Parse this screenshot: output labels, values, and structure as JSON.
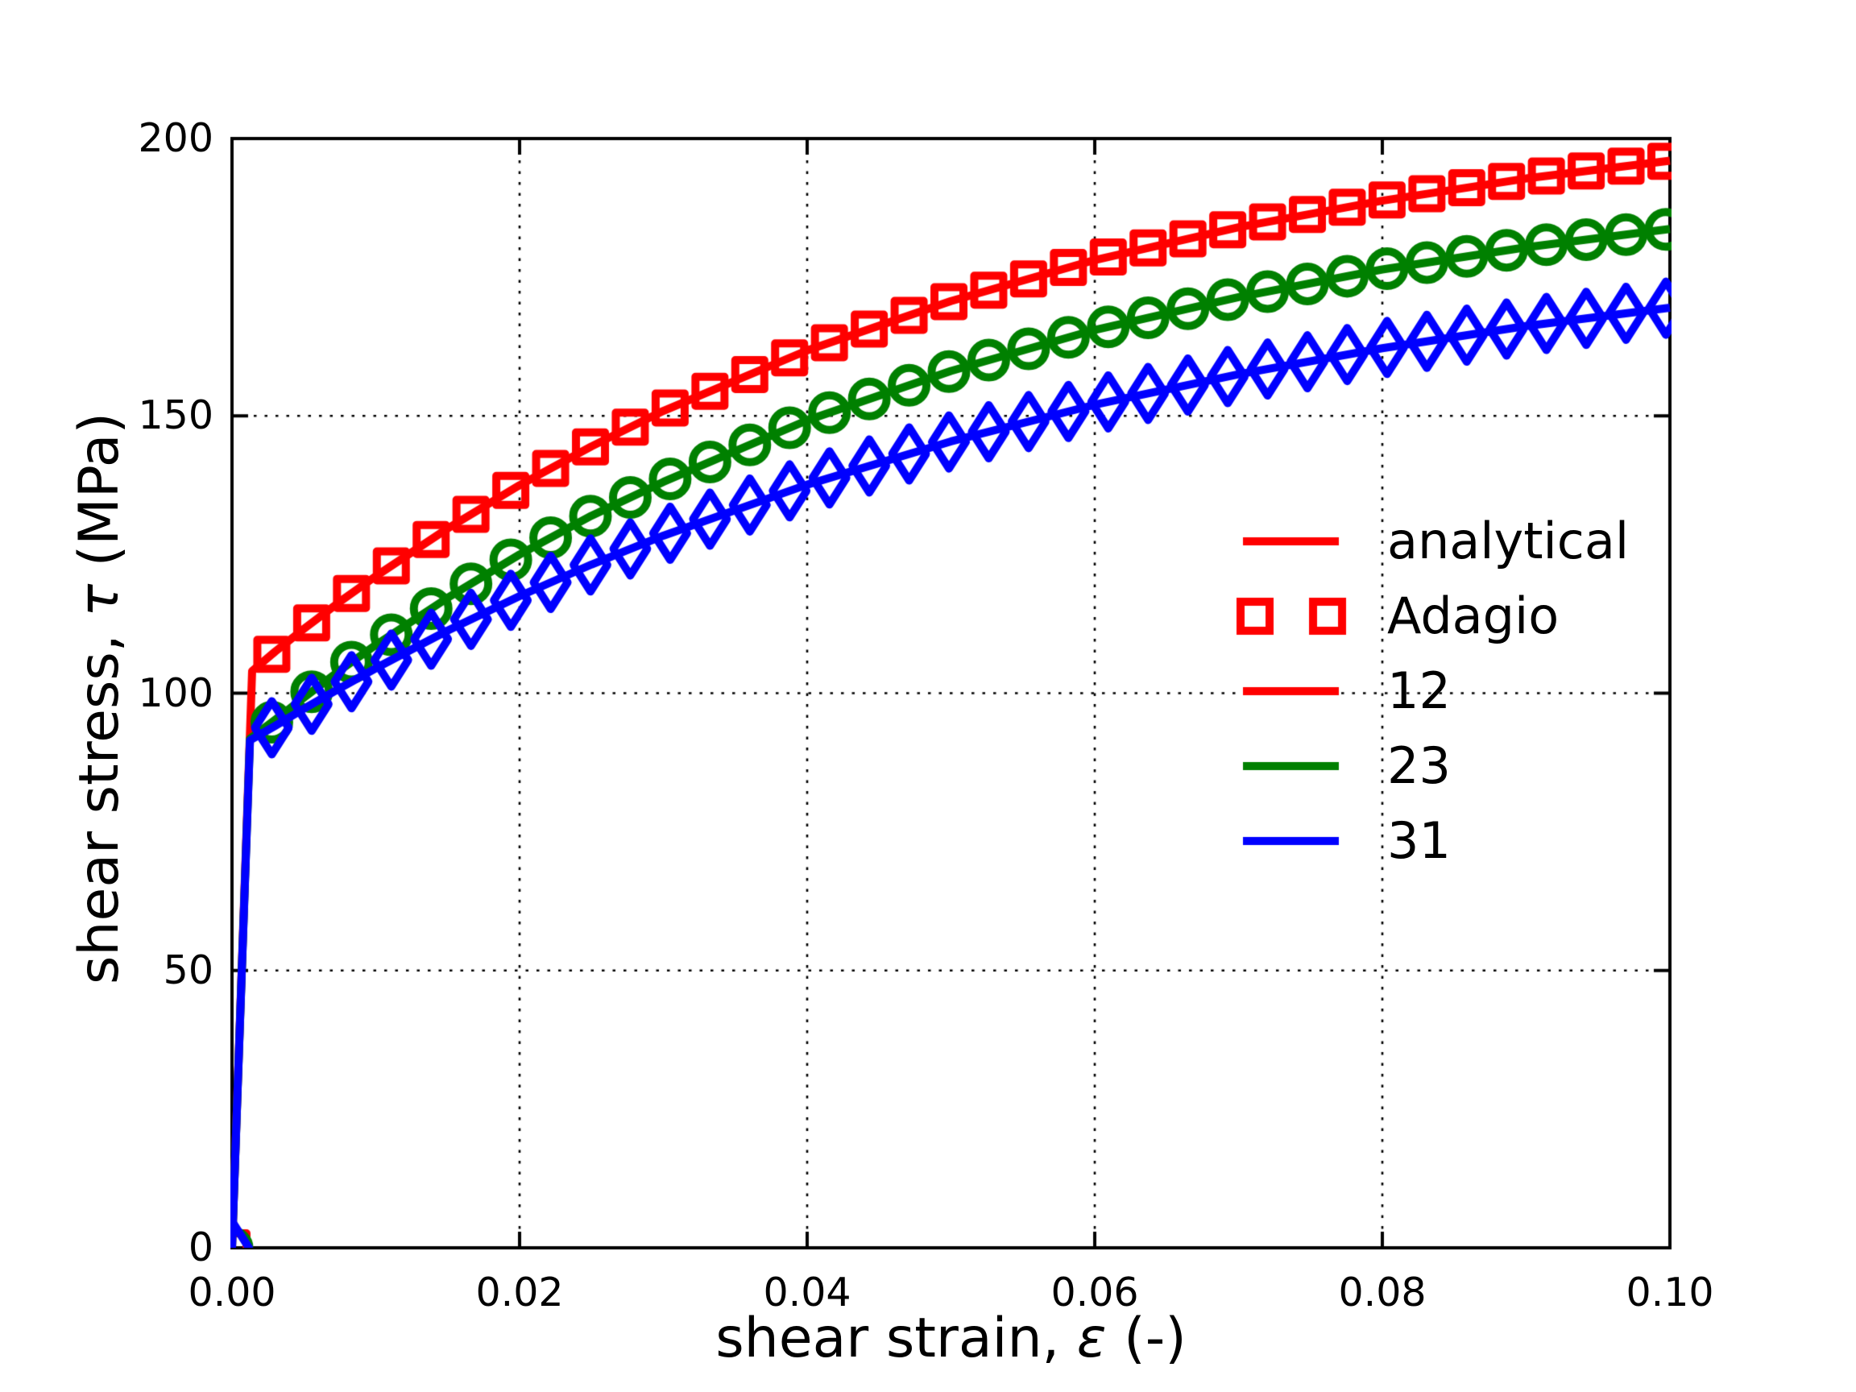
{
  "figure": {
    "background": "#ffffff"
  },
  "chart_data": {
    "type": "line",
    "title": "",
    "xlabel": {
      "prefix": "shear strain, ",
      "symbol": "ε",
      "suffix": " (-)"
    },
    "ylabel": {
      "prefix": "shear stress, ",
      "symbol": "τ",
      "suffix": " (MPa)"
    },
    "xlim": [
      0,
      0.1
    ],
    "ylim": [
      0,
      200
    ],
    "grid": "dotted-black",
    "tick_direction": "in",
    "x_ticks": [
      0,
      0.02,
      0.04,
      0.06,
      0.08,
      0.1
    ],
    "x_tick_labels": [
      "0.00",
      "0.02",
      "0.04",
      "0.06",
      "0.08",
      "0.10"
    ],
    "y_ticks": [
      0,
      50,
      100,
      150,
      200
    ],
    "y_tick_labels": [
      "0",
      "50",
      "100",
      "150",
      "200"
    ],
    "colors": {
      "red": "#ff0000",
      "green": "#008000",
      "blue": "#0000ff"
    },
    "series": [
      {
        "name": "12",
        "color": "#ff0000",
        "marker": "square",
        "x": [
          0,
          0.0014,
          0.003,
          0.005,
          0.0075,
          0.01,
          0.015,
          0.02,
          0.025,
          0.03,
          0.04,
          0.05,
          0.06,
          0.07,
          0.08,
          0.09,
          0.1
        ],
        "y": [
          0,
          104.0,
          107.5,
          111.6,
          116.5,
          121.1,
          129.7,
          137.5,
          144.5,
          150.9,
          161.8,
          170.7,
          178.1,
          184.0,
          188.8,
          192.8,
          196.0
        ]
      },
      {
        "name": "23",
        "color": "#008000",
        "marker": "circle",
        "x": [
          0,
          0.00125,
          0.003,
          0.005,
          0.0075,
          0.01,
          0.015,
          0.02,
          0.025,
          0.03,
          0.04,
          0.05,
          0.06,
          0.07,
          0.08,
          0.09,
          0.1
        ],
        "y": [
          0,
          91.8,
          95.2,
          99.2,
          104.1,
          108.7,
          117.2,
          125.0,
          132.0,
          138.1,
          149.2,
          158.1,
          165.5,
          171.4,
          176.4,
          180.4,
          183.7
        ]
      },
      {
        "name": "31",
        "color": "#0000ff",
        "marker": "diamond",
        "x": [
          0,
          0.00125,
          0.003,
          0.005,
          0.0075,
          0.01,
          0.015,
          0.02,
          0.025,
          0.03,
          0.04,
          0.05,
          0.06,
          0.07,
          0.08,
          0.09,
          0.1
        ],
        "y": [
          0,
          91.5,
          94.1,
          97.2,
          100.9,
          104.5,
          111.3,
          117.5,
          123.2,
          128.4,
          137.6,
          145.4,
          152.0,
          157.5,
          162.2,
          166.2,
          169.5
        ]
      }
    ],
    "marker_interval": 0.00277,
    "legend": {
      "frame": false,
      "entries": [
        {
          "label": "analytical",
          "handle": "line",
          "color": "#ff0000"
        },
        {
          "label": "Adagio",
          "handle": "two-squares",
          "color": "#ff0000"
        },
        {
          "label": "12",
          "handle": "line",
          "color": "#ff0000"
        },
        {
          "label": "23",
          "handle": "line",
          "color": "#008000"
        },
        {
          "label": "31",
          "handle": "line",
          "color": "#0000ff"
        }
      ]
    }
  }
}
